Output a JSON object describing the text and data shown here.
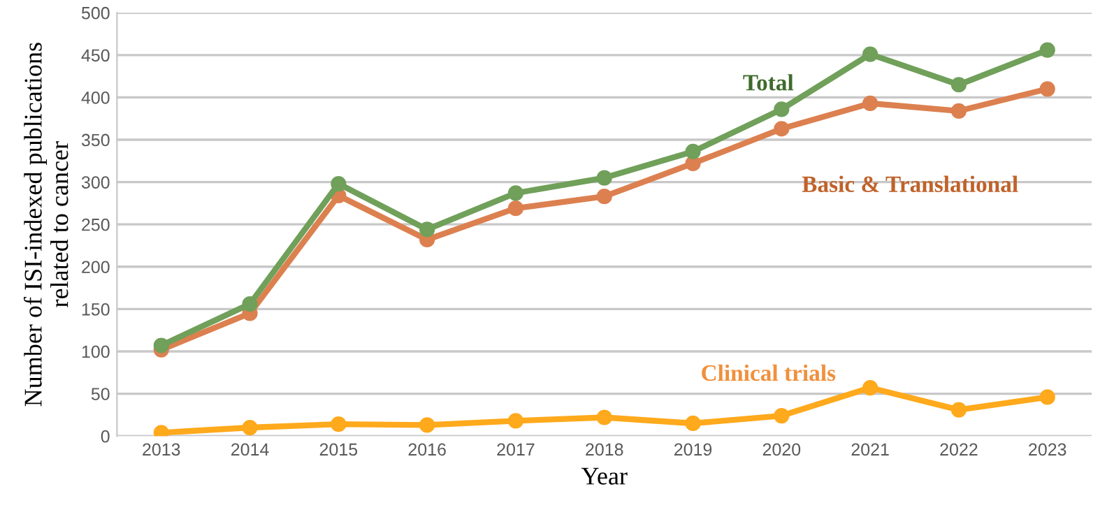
{
  "chart_data": {
    "type": "line",
    "xlabel": "Year",
    "ylabel": "Number of ISI-indexed publications\nrelated to cancer",
    "categories": [
      "2013",
      "2014",
      "2015",
      "2016",
      "2017",
      "2018",
      "2019",
      "2020",
      "2021",
      "2022",
      "2023"
    ],
    "series": [
      {
        "name": "Total",
        "color": "#70a05a",
        "values": [
          107,
          156,
          298,
          244,
          287,
          305,
          336,
          386,
          451,
          415,
          456
        ]
      },
      {
        "name": "Basic & Translational",
        "color": "#dc8050",
        "values": [
          102,
          145,
          284,
          232,
          269,
          283,
          322,
          363,
          393,
          384,
          410
        ]
      },
      {
        "name": "Clinical trials",
        "color": "#ffa91c",
        "values": [
          4,
          10,
          14,
          13,
          18,
          22,
          15,
          24,
          57,
          31,
          46
        ]
      }
    ],
    "ylim": [
      0,
      500
    ],
    "yticks": [
      0,
      50,
      100,
      150,
      200,
      250,
      300,
      350,
      400,
      450,
      500
    ],
    "grid": "y",
    "marker": "circle",
    "line_style": "solid"
  }
}
